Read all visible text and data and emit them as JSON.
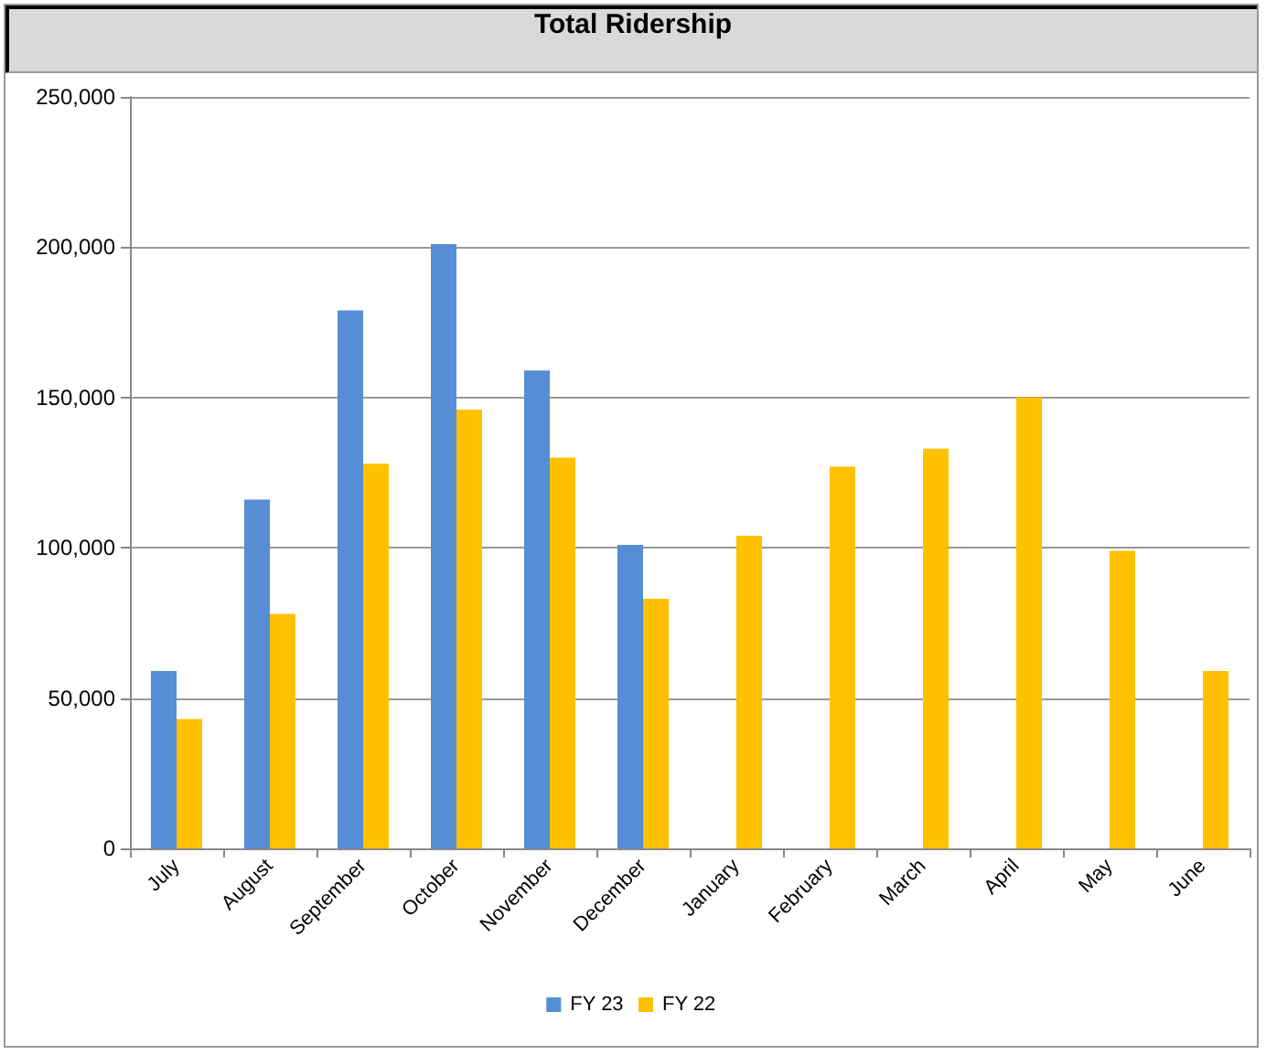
{
  "chart_data": {
    "type": "bar",
    "title": "Total Ridership",
    "categories": [
      "July",
      "August",
      "September",
      "October",
      "November",
      "December",
      "January",
      "February",
      "March",
      "April",
      "May",
      "June"
    ],
    "series": [
      {
        "name": "FY 23",
        "color": "#558ed5",
        "values": [
          59000,
          116000,
          179000,
          201000,
          159000,
          101000,
          null,
          null,
          null,
          null,
          null,
          null
        ]
      },
      {
        "name": "FY 22",
        "color": "#ffc000",
        "values": [
          43000,
          78000,
          128000,
          146000,
          130000,
          83000,
          104000,
          127000,
          133000,
          150000,
          99000,
          59000
        ]
      }
    ],
    "ylim": [
      0,
      250000
    ],
    "yticks": [
      0,
      {
        "value": 50000,
        "label": "50,000"
      },
      {
        "value": 100000,
        "label": "100,000"
      },
      {
        "value": 150000,
        "label": "150,000"
      },
      {
        "value": 200000,
        "label": "200,000"
      },
      {
        "value": 250000,
        "label": "250,000"
      }
    ],
    "grid": "y",
    "legend": "bottom"
  }
}
